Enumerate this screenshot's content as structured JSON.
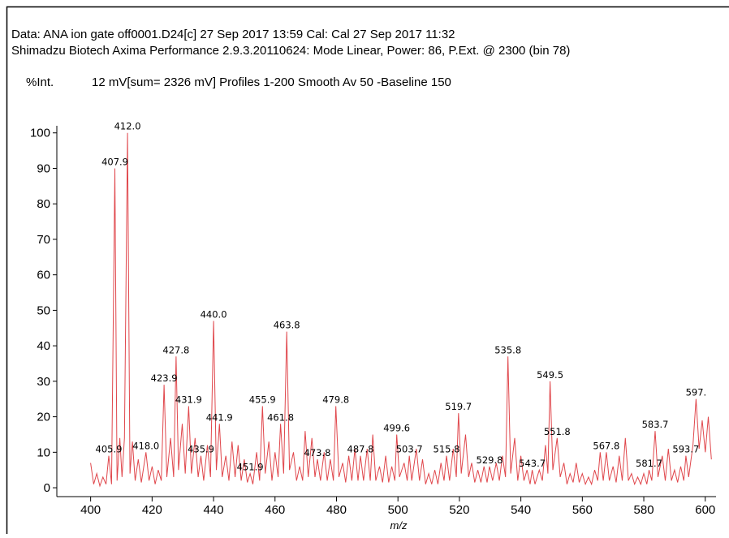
{
  "chart_data": {
    "type": "line",
    "header": [
      "Data: ANA ion gate off0001.D24[c] 27 Sep 2017 13:59 Cal: Cal 27 Sep 2017 11:32",
      "Shimadzu Biotech Axima Performance 2.9.3.20110624: Mode Linear, Power: 86, P.Ext. @ 2300 (bin 78)"
    ],
    "y_label": "%Int.",
    "subtitle": "12 mV[sum= 2326 mV]  Profiles 1-200 Smooth Av 50 -Baseline 150",
    "x_label": "m/z",
    "color": "#e0474c",
    "xlim": [
      389,
      603.5
    ],
    "ylim": [
      -2.5,
      102
    ],
    "xticks": [
      400,
      420,
      440,
      460,
      480,
      500,
      520,
      540,
      560,
      580,
      600
    ],
    "yticks": [
      0,
      10,
      20,
      30,
      40,
      50,
      60,
      70,
      80,
      90,
      100
    ],
    "x": [
      400,
      401,
      402,
      403,
      404,
      405,
      405.9,
      406.8,
      407.9,
      408.6,
      409.5,
      410.2,
      411,
      412,
      412.8,
      413.6,
      414.5,
      415.5,
      416.5,
      418,
      419,
      420,
      421,
      422,
      423,
      423.9,
      424.8,
      426,
      427,
      427.8,
      428.6,
      429.8,
      430.8,
      431.9,
      432.8,
      434,
      435,
      435.9,
      436.8,
      438,
      439,
      440,
      440.9,
      441.9,
      442.8,
      444,
      445,
      446,
      447,
      448,
      449,
      450,
      451,
      451.9,
      452.8,
      454,
      455,
      455.9,
      456.8,
      458,
      459,
      460,
      461,
      461.8,
      462.8,
      463.8,
      464.7,
      466,
      467,
      468,
      469,
      469.8,
      470.8,
      472,
      473,
      473.8,
      474.8,
      476,
      477,
      478,
      479,
      479.8,
      480.8,
      482,
      483,
      484,
      485,
      486,
      487,
      487.8,
      488.8,
      490,
      491,
      491.8,
      492.8,
      494,
      495,
      496,
      497,
      498,
      499,
      499.6,
      500.5,
      502,
      503,
      503.7,
      504.5,
      506,
      507,
      508,
      509,
      510,
      511,
      512,
      513,
      514,
      515,
      515.8,
      516.8,
      518,
      519,
      519.7,
      520.6,
      522,
      523,
      524,
      525,
      526,
      527,
      528,
      529,
      529.8,
      530.8,
      532,
      533,
      534,
      535,
      535.8,
      536.7,
      538,
      539,
      540,
      541,
      542,
      543,
      543.7,
      544.6,
      546,
      547,
      548,
      548.8,
      549.5,
      550.4,
      551.8,
      552.8,
      554,
      555,
      556,
      557,
      558,
      559,
      560,
      561,
      562,
      563,
      564,
      565,
      565.8,
      566.8,
      567.8,
      568.8,
      570,
      571,
      572,
      573,
      574,
      575,
      576,
      577,
      578,
      579,
      580,
      581,
      581.7,
      582.6,
      583.7,
      584.6,
      586,
      587,
      588,
      589,
      590,
      591,
      592,
      593,
      593.7,
      594.6,
      596,
      597,
      598,
      599,
      600,
      601,
      602
    ],
    "values": [
      7,
      1,
      4,
      0.5,
      3,
      1,
      9,
      1,
      90,
      2,
      14,
      3,
      14,
      100,
      4,
      13,
      2,
      8,
      1.5,
      10,
      2,
      6,
      1,
      5,
      2,
      29,
      3,
      14,
      3,
      37,
      5,
      18,
      4,
      23,
      4,
      14,
      3,
      9,
      2,
      12,
      3,
      47,
      5,
      18,
      3,
      9,
      2,
      13,
      3,
      12,
      2,
      8,
      1.5,
      4,
      1,
      10,
      2,
      23,
      4,
      13,
      2,
      10,
      3,
      18,
      4,
      44,
      5,
      10,
      2,
      6,
      2,
      16,
      3,
      14,
      3,
      8,
      2,
      10,
      2,
      8,
      2,
      23,
      3,
      7,
      1.5,
      9,
      2,
      11,
      2,
      9,
      2,
      11,
      2,
      15,
      2,
      6,
      1.5,
      9,
      1.5,
      6,
      2,
      15,
      3,
      7,
      2,
      9,
      2,
      11,
      2,
      8,
      1,
      4,
      1,
      5,
      1,
      7,
      2,
      9,
      2,
      11,
      3,
      21,
      4,
      15,
      3,
      7,
      1.5,
      5,
      1.5,
      6,
      1.5,
      6,
      2,
      7,
      2,
      9,
      3,
      37,
      4,
      14,
      2,
      9,
      2,
      5,
      1,
      5,
      1,
      5,
      2,
      12,
      4,
      30,
      5,
      14,
      3,
      7,
      1,
      4,
      1.5,
      7,
      1.5,
      4,
      1,
      3,
      1,
      5,
      2,
      10,
      2,
      10,
      2,
      6,
      1.5,
      9,
      2,
      14,
      2,
      4,
      1,
      3,
      1,
      4,
      1,
      5,
      2,
      16,
      3,
      9,
      2,
      11,
      2,
      5,
      1.5,
      6,
      2,
      9,
      3,
      12,
      25,
      11,
      19,
      10,
      20,
      8
    ],
    "annotations": [
      {
        "text": "405.9",
        "x": 405.9,
        "y": 9
      },
      {
        "text": "407.9",
        "x": 407.9,
        "y": 90
      },
      {
        "text": "412.0",
        "x": 412.0,
        "y": 100
      },
      {
        "text": "418.0",
        "x": 418.0,
        "y": 10
      },
      {
        "text": "423.9",
        "x": 423.9,
        "y": 29
      },
      {
        "text": "427.8",
        "x": 427.8,
        "y": 37
      },
      {
        "text": "431.9",
        "x": 431.9,
        "y": 23
      },
      {
        "text": "435.9",
        "x": 435.9,
        "y": 9
      },
      {
        "text": "440.0",
        "x": 440.0,
        "y": 47
      },
      {
        "text": "441.9",
        "x": 441.9,
        "y": 18
      },
      {
        "text": "451.9",
        "x": 451.9,
        "y": 4
      },
      {
        "text": "455.9",
        "x": 455.9,
        "y": 23
      },
      {
        "text": "461.8",
        "x": 461.8,
        "y": 18
      },
      {
        "text": "463.8",
        "x": 463.8,
        "y": 44
      },
      {
        "text": "473.8",
        "x": 473.8,
        "y": 8
      },
      {
        "text": "479.8",
        "x": 479.8,
        "y": 23
      },
      {
        "text": "487.8",
        "x": 487.8,
        "y": 9
      },
      {
        "text": "499.6",
        "x": 499.6,
        "y": 15
      },
      {
        "text": "503.7",
        "x": 503.7,
        "y": 9
      },
      {
        "text": "515.8",
        "x": 515.8,
        "y": 9
      },
      {
        "text": "519.7",
        "x": 519.7,
        "y": 21
      },
      {
        "text": "529.8",
        "x": 529.8,
        "y": 6
      },
      {
        "text": "535.8",
        "x": 535.8,
        "y": 37
      },
      {
        "text": "543.7",
        "x": 543.7,
        "y": 5
      },
      {
        "text": "549.5",
        "x": 549.5,
        "y": 30
      },
      {
        "text": "551.8",
        "x": 551.8,
        "y": 14
      },
      {
        "text": "567.8",
        "x": 567.8,
        "y": 10
      },
      {
        "text": "581.7",
        "x": 581.7,
        "y": 5
      },
      {
        "text": "583.7",
        "x": 583.7,
        "y": 16
      },
      {
        "text": "593.7",
        "x": 593.7,
        "y": 9
      },
      {
        "text": "597.",
        "x": 597,
        "y": 25
      }
    ]
  }
}
